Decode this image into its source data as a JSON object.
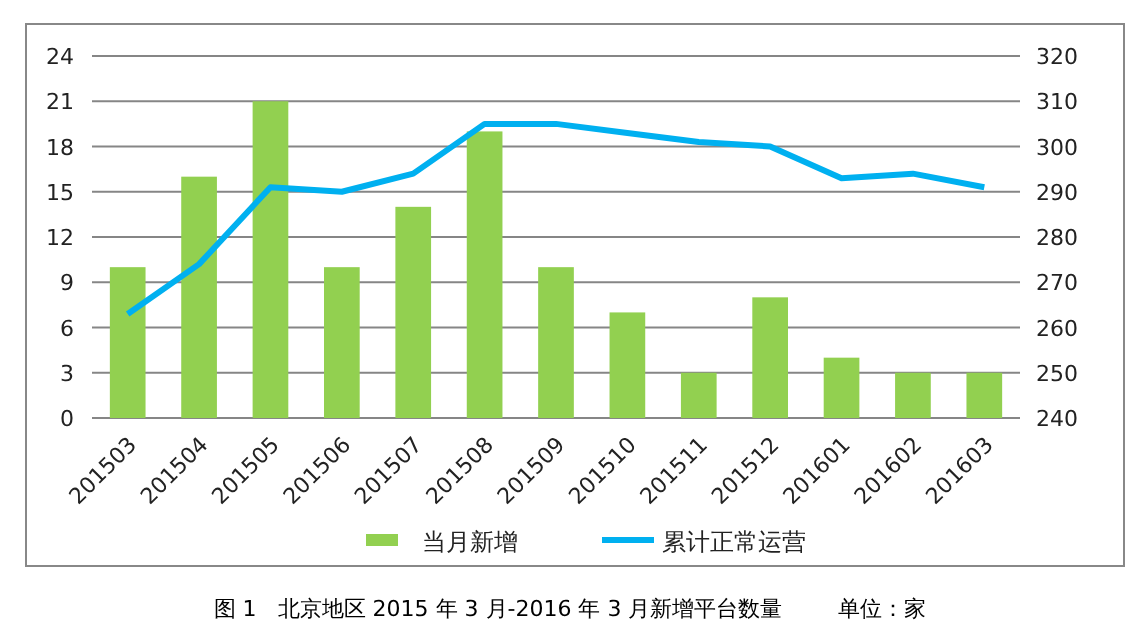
{
  "chart_data": {
    "type": "bar",
    "categories": [
      "201503",
      "201504",
      "201505",
      "201506",
      "201507",
      "201508",
      "201509",
      "201510",
      "201511",
      "201512",
      "201601",
      "201602",
      "201603"
    ],
    "series": [
      {
        "name": "当月新增",
        "color": "#92d050",
        "values": [
          10,
          16,
          21,
          10,
          14,
          19,
          10,
          7,
          3,
          8,
          4,
          3,
          3
        ]
      },
      {
        "name": "累计正常运营",
        "type": "line",
        "axis": "y2",
        "color": "#00b0f0",
        "values": [
          263,
          274,
          291,
          290,
          294,
          305,
          305,
          303,
          301,
          300,
          293,
          294,
          291
        ]
      }
    ],
    "ylim": [
      0,
      24
    ],
    "yticks": [
      0,
      3,
      6,
      9,
      12,
      15,
      18,
      21,
      24
    ],
    "y2lim": [
      240,
      320
    ],
    "y2ticks": [
      240,
      250,
      260,
      270,
      280,
      290,
      300,
      310,
      320
    ],
    "grid": "y",
    "legend": "bottom",
    "marker": "none",
    "annotations": [
      "图 1   北京地区 2015 年 3 月-2016 年 3 月新增平台数量        单位：家"
    ]
  }
}
